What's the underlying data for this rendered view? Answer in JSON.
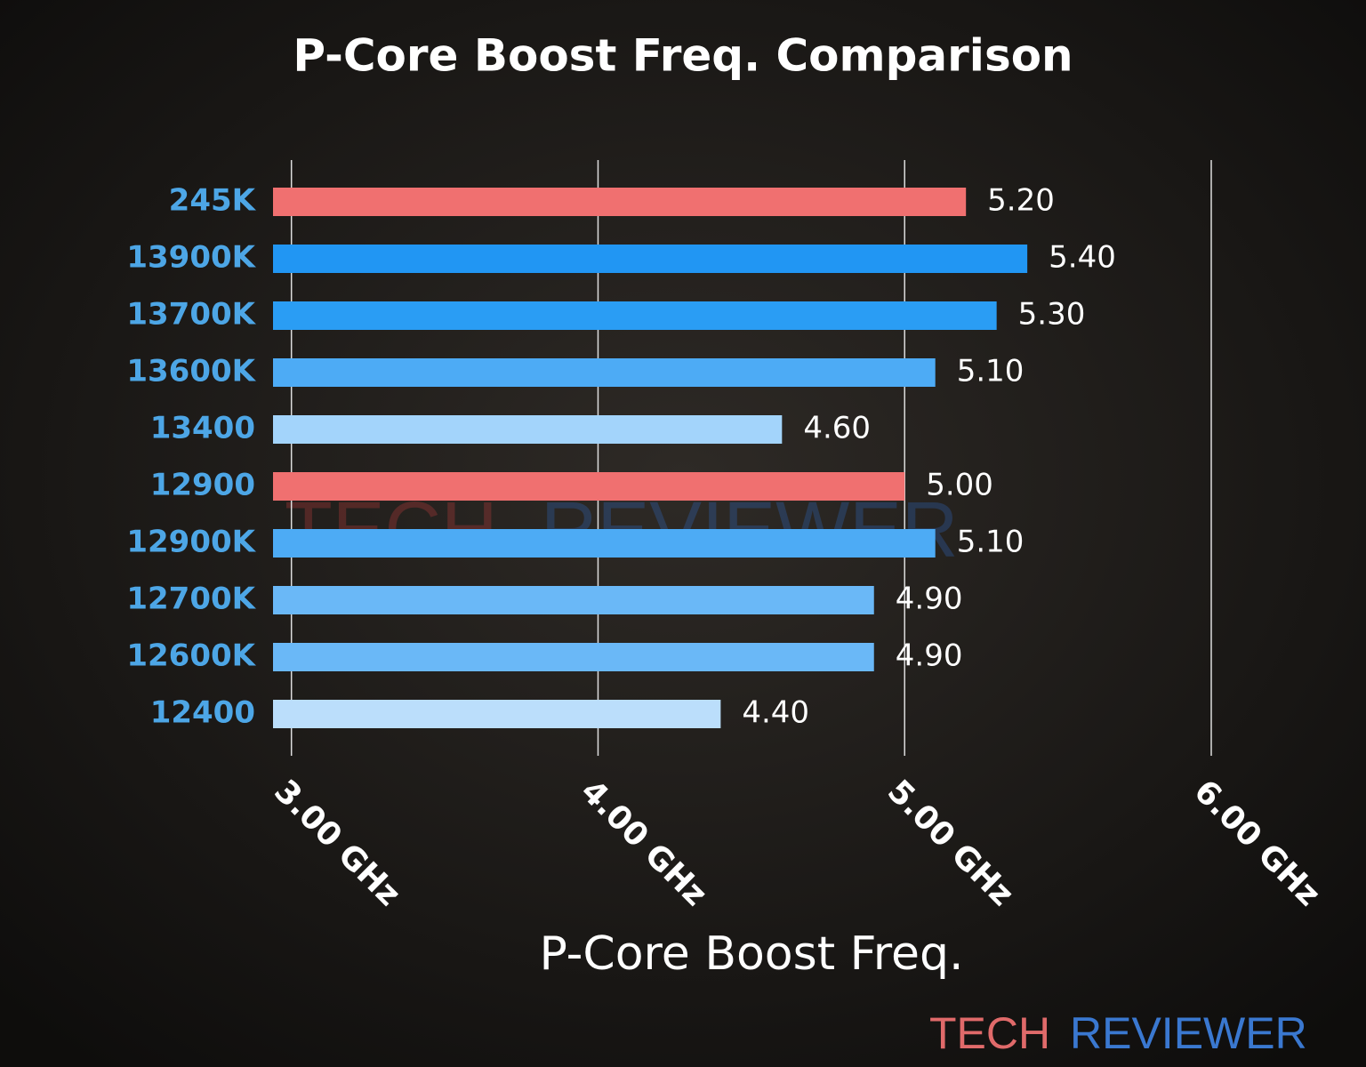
{
  "chart_data": {
    "type": "hbar",
    "title": "P-Core Boost Freq. Comparison",
    "x_label": "P-Core Boost Freq.",
    "categories": [
      "245K",
      "13900K",
      "13700K",
      "13600K",
      "13400",
      "12900",
      "12900K",
      "12700K",
      "12600K",
      "12400"
    ],
    "values": [
      5.2,
      5.4,
      5.3,
      5.1,
      4.6,
      5.0,
      5.1,
      4.9,
      4.9,
      4.4
    ],
    "value_labels": [
      "5.20",
      "5.40",
      "5.30",
      "5.10",
      "4.60",
      "5.00",
      "5.10",
      "4.90",
      "4.90",
      "4.40"
    ],
    "colors": [
      "#f07070",
      "#2196f3",
      "#2a9df4",
      "#4dabf5",
      "#a3d4fb",
      "#f07070",
      "#4dabf5",
      "#6ab8f7",
      "#6ab8f7",
      "#bbdefb"
    ],
    "xlim": [
      2.94,
      6.0
    ],
    "xticks": [
      {
        "value": 3,
        "label": "3.00 GHz"
      },
      {
        "value": 4,
        "label": "4.00 GHz"
      },
      {
        "value": 5,
        "label": "5.00 GHz"
      },
      {
        "value": 6,
        "label": "6.00 GHz"
      }
    ],
    "grid": true,
    "logo": {
      "left": "TECH",
      "right": "REVIEWER"
    }
  }
}
